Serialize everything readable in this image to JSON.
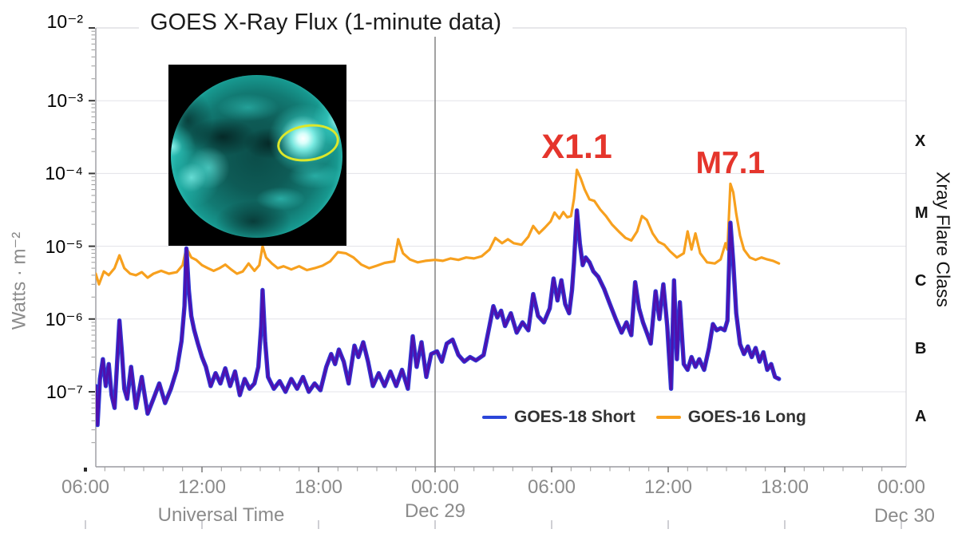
{
  "title": "GOES X-Ray Flux (1-minute data)",
  "colors": {
    "goes16_long": "#F7A01E",
    "goes18_short_core": "#4F10AE",
    "goes18_short_edge": "#2E38D4",
    "legend_short_swatch": "#2B46D9",
    "annotation_red": "#E5352C",
    "day_line": "#8A8A8A",
    "grid": "#E3E3E8",
    "axis_dark": "#9A9AA0",
    "axis_light": "#CFCFD4",
    "tick_label": "#8B8B8B"
  },
  "y_axis": {
    "label": "Watts · m⁻²",
    "ticks": [
      "10⁻²",
      "10⁻³",
      "10⁻⁴",
      "10⁻⁵",
      "10⁻⁶",
      "10⁻⁷"
    ]
  },
  "x_axis": {
    "label": "Universal Time",
    "ticks": [
      "06:00",
      "12:00",
      "18:00",
      "00:00",
      "06:00",
      "12:00",
      "18:00",
      "00:00"
    ],
    "day_labels": [
      "Dec 29",
      "Dec 30"
    ]
  },
  "right_axis": {
    "label": "Xray Flare Class",
    "classes": [
      "X",
      "M",
      "C",
      "B",
      "A"
    ]
  },
  "legend": [
    {
      "label": "GOES-18 Short",
      "color": "#2B46D9"
    },
    {
      "label": "GOES-16 Long",
      "color": "#F7A01E"
    }
  ],
  "chart_data": {
    "type": "line",
    "title": "GOES X-Ray Flux (1-minute data)",
    "ylabel": "Watts · m⁻²",
    "xlabel": "Universal Time",
    "ylog": true,
    "ylim": [
      1e-08,
      0.01
    ],
    "y_tick_values": [
      0.01,
      0.001,
      0.0001,
      1e-05,
      1e-06,
      1e-07
    ],
    "x_unit": "hours UT (0 = 00:00 Dec 28, 24 = 00:00 Dec 29, 48 = 00:00 Dec 30)",
    "xlim_hours": [
      6.53,
      48.25
    ],
    "x_tick_hours": [
      6,
      12,
      18,
      24,
      30,
      36,
      42,
      48
    ],
    "day_boundary_hours": 24,
    "grid": true,
    "legend_position": "bottom-center-inside",
    "flare_class_thresholds": {
      "A": 1e-08,
      "B": 1e-07,
      "C": 1e-06,
      "M": 1e-05,
      "X": 0.0001
    },
    "annotations": [
      {
        "text": "X1.1",
        "t_hours": 31.3,
        "flux": 0.00023
      },
      {
        "text": "M7.1",
        "t_hours": 39.2,
        "flux": 0.000137
      }
    ],
    "series": [
      {
        "name": "GOES-16 Long",
        "color": "#F7A01E",
        "points": [
          [
            6.53,
            4.2e-06
          ],
          [
            6.7,
            3e-06
          ],
          [
            6.95,
            4.5e-06
          ],
          [
            7.2,
            4e-06
          ],
          [
            7.5,
            5e-06
          ],
          [
            7.75,
            7.5e-06
          ],
          [
            8.0,
            5e-06
          ],
          [
            8.3,
            4.2e-06
          ],
          [
            8.6,
            4e-06
          ],
          [
            8.9,
            4.4e-06
          ],
          [
            9.2,
            3.7e-06
          ],
          [
            9.5,
            4.2e-06
          ],
          [
            9.9,
            4.6e-06
          ],
          [
            10.3,
            4.2e-06
          ],
          [
            10.7,
            4.4e-06
          ],
          [
            11.0,
            5.5e-06
          ],
          [
            11.2,
            9.5e-06
          ],
          [
            11.45,
            7e-06
          ],
          [
            11.7,
            6.5e-06
          ],
          [
            12.0,
            5.5e-06
          ],
          [
            12.3,
            5e-06
          ],
          [
            12.6,
            4.6e-06
          ],
          [
            12.9,
            5e-06
          ],
          [
            13.2,
            5.6e-06
          ],
          [
            13.5,
            4.8e-06
          ],
          [
            13.8,
            4.2e-06
          ],
          [
            14.1,
            4.5e-06
          ],
          [
            14.4,
            5.8e-06
          ],
          [
            14.7,
            4.6e-06
          ],
          [
            14.95,
            5.5e-06
          ],
          [
            15.12,
            1e-05
          ],
          [
            15.3,
            7e-06
          ],
          [
            15.6,
            5.8e-06
          ],
          [
            15.9,
            5e-06
          ],
          [
            16.2,
            5.3e-06
          ],
          [
            16.6,
            4.8e-06
          ],
          [
            17.0,
            5.3e-06
          ],
          [
            17.4,
            4.7e-06
          ],
          [
            17.8,
            5e-06
          ],
          [
            18.2,
            5.4e-06
          ],
          [
            18.6,
            6.2e-06
          ],
          [
            19.0,
            8.3e-06
          ],
          [
            19.4,
            8e-06
          ],
          [
            19.8,
            7e-06
          ],
          [
            20.2,
            5.6e-06
          ],
          [
            20.6,
            5e-06
          ],
          [
            21.0,
            5.4e-06
          ],
          [
            21.4,
            5.9e-06
          ],
          [
            21.9,
            6.2e-06
          ],
          [
            22.1,
            1.25e-05
          ],
          [
            22.35,
            8e-06
          ],
          [
            22.7,
            6.6e-06
          ],
          [
            23.1,
            6e-06
          ],
          [
            23.5,
            6.3e-06
          ],
          [
            24.0,
            6.5e-06
          ],
          [
            24.4,
            6.3e-06
          ],
          [
            24.8,
            6.8e-06
          ],
          [
            25.2,
            6.5e-06
          ],
          [
            25.6,
            7e-06
          ],
          [
            26.0,
            6.8e-06
          ],
          [
            26.4,
            7.3e-06
          ],
          [
            26.8,
            9e-06
          ],
          [
            27.1,
            1.3e-05
          ],
          [
            27.45,
            1.1e-05
          ],
          [
            27.75,
            1.25e-05
          ],
          [
            28.05,
            1.1e-05
          ],
          [
            28.45,
            1.05e-05
          ],
          [
            28.8,
            1.35e-05
          ],
          [
            29.05,
            1.9e-05
          ],
          [
            29.35,
            1.5e-05
          ],
          [
            29.65,
            1.8e-05
          ],
          [
            29.95,
            2.2e-05
          ],
          [
            30.15,
            2.9e-05
          ],
          [
            30.4,
            2.4e-05
          ],
          [
            30.6,
            2.95e-05
          ],
          [
            30.8,
            2.5e-05
          ],
          [
            31.0,
            2.6e-05
          ],
          [
            31.15,
            4.5e-05
          ],
          [
            31.3,
            0.000112
          ],
          [
            31.5,
            8.5e-05
          ],
          [
            31.7,
            6e-05
          ],
          [
            31.95,
            4.4e-05
          ],
          [
            32.2,
            4.2e-05
          ],
          [
            32.5,
            3.2e-05
          ],
          [
            32.8,
            2.6e-05
          ],
          [
            33.1,
            2e-05
          ],
          [
            33.5,
            1.55e-05
          ],
          [
            33.8,
            1.3e-05
          ],
          [
            34.1,
            1.2e-05
          ],
          [
            34.4,
            1.6e-05
          ],
          [
            34.65,
            2.6e-05
          ],
          [
            34.9,
            2.3e-05
          ],
          [
            35.2,
            1.5e-05
          ],
          [
            35.5,
            1.15e-05
          ],
          [
            35.8,
            1.05e-05
          ],
          [
            36.1,
            8.5e-06
          ],
          [
            36.45,
            7e-06
          ],
          [
            36.8,
            8e-06
          ],
          [
            37.0,
            1.6e-05
          ],
          [
            37.2,
            9e-06
          ],
          [
            37.4,
            1.5e-05
          ],
          [
            37.65,
            8e-06
          ],
          [
            38.0,
            6e-06
          ],
          [
            38.4,
            5.8e-06
          ],
          [
            38.7,
            6.6e-06
          ],
          [
            38.95,
            1.1e-05
          ],
          [
            39.05,
            9e-06
          ],
          [
            39.2,
            7.2e-05
          ],
          [
            39.35,
            5.5e-05
          ],
          [
            39.5,
            2.8e-05
          ],
          [
            39.7,
            1.4e-05
          ],
          [
            39.9,
            9e-06
          ],
          [
            40.2,
            7e-06
          ],
          [
            40.5,
            6.5e-06
          ],
          [
            40.8,
            7e-06
          ],
          [
            41.1,
            6.6e-06
          ],
          [
            41.4,
            6.3e-06
          ],
          [
            41.7,
            5.8e-06
          ]
        ]
      },
      {
        "name": "GOES-18 Short",
        "color": "#4F10AE",
        "edge_color": "#2E38D4",
        "points": [
          [
            6.53,
            1.2e-07
          ],
          [
            6.62,
            3.5e-08
          ],
          [
            6.75,
            1.5e-07
          ],
          [
            6.9,
            2.8e-07
          ],
          [
            7.05,
            1.2e-07
          ],
          [
            7.2,
            2.4e-07
          ],
          [
            7.35,
            9e-08
          ],
          [
            7.5,
            6e-08
          ],
          [
            7.62,
            2.2e-07
          ],
          [
            7.75,
            9.5e-07
          ],
          [
            7.88,
            3.5e-07
          ],
          [
            8.0,
            1.1e-07
          ],
          [
            8.15,
            8e-08
          ],
          [
            8.35,
            2.2e-07
          ],
          [
            8.6,
            6e-08
          ],
          [
            8.9,
            1.6e-07
          ],
          [
            9.2,
            5e-08
          ],
          [
            9.5,
            8e-08
          ],
          [
            9.8,
            1.3e-07
          ],
          [
            10.1,
            7e-08
          ],
          [
            10.4,
            1.1e-07
          ],
          [
            10.7,
            2e-07
          ],
          [
            10.95,
            5e-07
          ],
          [
            11.1,
            1.5e-06
          ],
          [
            11.2,
            9.3e-06
          ],
          [
            11.32,
            2.5e-06
          ],
          [
            11.45,
            1.1e-06
          ],
          [
            11.6,
            7e-07
          ],
          [
            11.8,
            4.5e-07
          ],
          [
            12.0,
            3e-07
          ],
          [
            12.2,
            2.2e-07
          ],
          [
            12.45,
            1.2e-07
          ],
          [
            12.7,
            1.8e-07
          ],
          [
            12.95,
            1.3e-07
          ],
          [
            13.2,
            2.1e-07
          ],
          [
            13.45,
            1.2e-07
          ],
          [
            13.7,
            1.9e-07
          ],
          [
            13.95,
            9e-08
          ],
          [
            14.2,
            1.5e-07
          ],
          [
            14.45,
            1.1e-07
          ],
          [
            14.7,
            1.3e-07
          ],
          [
            14.9,
            2.2e-07
          ],
          [
            15.05,
            8e-07
          ],
          [
            15.12,
            2.5e-06
          ],
          [
            15.25,
            5e-07
          ],
          [
            15.4,
            1.6e-07
          ],
          [
            15.7,
            1.1e-07
          ],
          [
            16.0,
            1.4e-07
          ],
          [
            16.3,
            1e-07
          ],
          [
            16.6,
            1.5e-07
          ],
          [
            16.9,
            1.1e-07
          ],
          [
            17.2,
            1.6e-07
          ],
          [
            17.5,
            1e-07
          ],
          [
            17.8,
            1.3e-07
          ],
          [
            18.1,
            1.05e-07
          ],
          [
            18.4,
            2.2e-07
          ],
          [
            18.65,
            3.3e-07
          ],
          [
            18.85,
            2.4e-07
          ],
          [
            19.05,
            3.8e-07
          ],
          [
            19.3,
            2.6e-07
          ],
          [
            19.55,
            1.3e-07
          ],
          [
            19.85,
            4.3e-07
          ],
          [
            20.05,
            3e-07
          ],
          [
            20.3,
            4.8e-07
          ],
          [
            20.55,
            2.6e-07
          ],
          [
            20.8,
            1.2e-07
          ],
          [
            21.1,
            1.8e-07
          ],
          [
            21.4,
            1.2e-07
          ],
          [
            21.7,
            1.9e-07
          ],
          [
            22.0,
            1.2e-07
          ],
          [
            22.3,
            2e-07
          ],
          [
            22.6,
            1.1e-07
          ],
          [
            22.85,
            5.8e-07
          ],
          [
            23.05,
            2.2e-07
          ],
          [
            23.3,
            4.8e-07
          ],
          [
            23.55,
            1.6e-07
          ],
          [
            23.8,
            3.3e-07
          ],
          [
            24.1,
            3.6e-07
          ],
          [
            24.35,
            2.6e-07
          ],
          [
            24.6,
            4.6e-07
          ],
          [
            24.9,
            5.2e-07
          ],
          [
            25.2,
            3.2e-07
          ],
          [
            25.5,
            2.6e-07
          ],
          [
            25.8,
            3e-07
          ],
          [
            26.1,
            2.7e-07
          ],
          [
            26.5,
            3.2e-07
          ],
          [
            26.8,
            8e-07
          ],
          [
            27.0,
            1.5e-06
          ],
          [
            27.2,
            1.05e-06
          ],
          [
            27.4,
            1.3e-06
          ],
          [
            27.6,
            8e-07
          ],
          [
            27.9,
            1.2e-06
          ],
          [
            28.2,
            6.5e-07
          ],
          [
            28.5,
            9e-07
          ],
          [
            28.8,
            7e-07
          ],
          [
            29.05,
            2.2e-06
          ],
          [
            29.3,
            1.1e-06
          ],
          [
            29.6,
            9e-07
          ],
          [
            29.9,
            1.4e-06
          ],
          [
            30.1,
            3.6e-06
          ],
          [
            30.3,
            1.8e-06
          ],
          [
            30.5,
            3.4e-06
          ],
          [
            30.7,
            1.6e-06
          ],
          [
            30.9,
            1.2e-06
          ],
          [
            31.05,
            2.5e-06
          ],
          [
            31.15,
            6e-06
          ],
          [
            31.3,
            3.1e-05
          ],
          [
            31.45,
            1.1e-05
          ],
          [
            31.6,
            5.5e-06
          ],
          [
            31.75,
            7e-06
          ],
          [
            31.95,
            6e-06
          ],
          [
            32.15,
            4.5e-06
          ],
          [
            32.4,
            3.8e-06
          ],
          [
            32.7,
            2.6e-06
          ],
          [
            33.0,
            1.6e-06
          ],
          [
            33.3,
            1e-06
          ],
          [
            33.6,
            6.5e-07
          ],
          [
            33.85,
            9e-07
          ],
          [
            34.1,
            6e-07
          ],
          [
            34.3,
            3.2e-06
          ],
          [
            34.5,
            1.4e-06
          ],
          [
            34.7,
            9e-07
          ],
          [
            34.9,
            6.5e-07
          ],
          [
            35.1,
            4.6e-07
          ],
          [
            35.35,
            2.4e-06
          ],
          [
            35.55,
            1e-06
          ],
          [
            35.75,
            3e-06
          ],
          [
            35.95,
            8e-07
          ],
          [
            36.15,
            1.1e-07
          ],
          [
            36.3,
            3.4e-06
          ],
          [
            36.45,
            2.8e-07
          ],
          [
            36.6,
            1.7e-06
          ],
          [
            36.8,
            2.4e-07
          ],
          [
            37.0,
            2e-07
          ],
          [
            37.2,
            3e-07
          ],
          [
            37.4,
            2.2e-07
          ],
          [
            37.6,
            2.8e-07
          ],
          [
            37.85,
            2e-07
          ],
          [
            38.1,
            4e-07
          ],
          [
            38.3,
            8.5e-07
          ],
          [
            38.5,
            7e-07
          ],
          [
            38.7,
            7.5e-07
          ],
          [
            38.9,
            7e-07
          ],
          [
            39.05,
            9.5e-07
          ],
          [
            39.2,
            2.1e-05
          ],
          [
            39.35,
            6e-06
          ],
          [
            39.5,
            1.2e-06
          ],
          [
            39.7,
            4.5e-07
          ],
          [
            39.9,
            3.3e-07
          ],
          [
            40.1,
            4.2e-07
          ],
          [
            40.3,
            3e-07
          ],
          [
            40.5,
            4e-07
          ],
          [
            40.7,
            2.6e-07
          ],
          [
            40.9,
            3.5e-07
          ],
          [
            41.1,
            2e-07
          ],
          [
            41.3,
            2.4e-07
          ],
          [
            41.5,
            1.6e-07
          ],
          [
            41.7,
            1.5e-07
          ]
        ]
      }
    ]
  }
}
